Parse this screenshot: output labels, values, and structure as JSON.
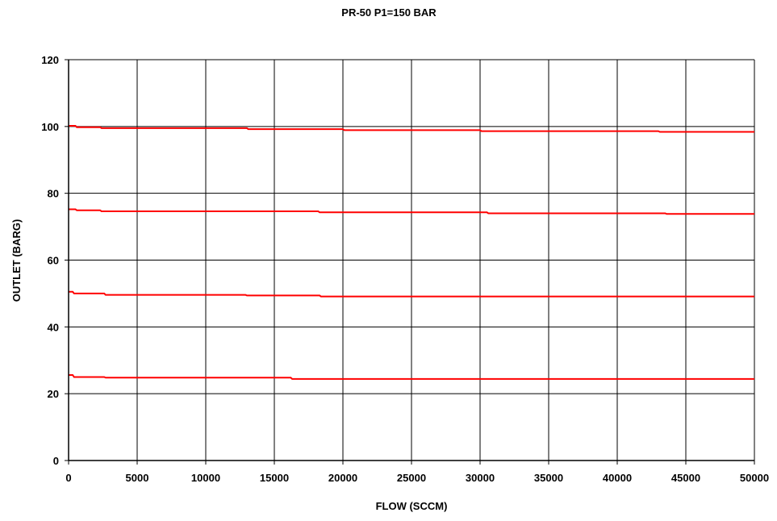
{
  "chart_data": {
    "type": "line",
    "title": "PR-50 P1=150 BAR",
    "xlabel": "FLOW (SCCM)",
    "ylabel": "OUTLET (BARG)",
    "xlim": [
      0,
      50000
    ],
    "ylim": [
      0,
      120
    ],
    "x_ticks": [
      "0",
      "5000",
      "10000",
      "15000",
      "20000",
      "25000",
      "30000",
      "35000",
      "40000",
      "45000",
      "50000"
    ],
    "y_ticks": [
      "0",
      "20",
      "40",
      "60",
      "80",
      "100",
      "120"
    ],
    "grid": true,
    "legend": "none",
    "colors": {
      "series": "#ff0000",
      "grid": "#000000",
      "background": "#ffffff"
    },
    "series": [
      {
        "x": [
          0,
          500,
          600,
          2300,
          2400,
          13000,
          13100,
          20000,
          20100,
          30000,
          30100,
          43000,
          43100,
          50000
        ],
        "y": [
          100.2,
          100.2,
          99.8,
          99.8,
          99.5,
          99.5,
          99.2,
          99.2,
          98.9,
          98.9,
          98.6,
          98.6,
          98.4,
          98.4
        ]
      },
      {
        "x": [
          0,
          500,
          600,
          2300,
          2400,
          18200,
          18300,
          30500,
          30600,
          43500,
          43600,
          50000
        ],
        "y": [
          75.2,
          75.2,
          74.9,
          74.9,
          74.6,
          74.6,
          74.3,
          74.3,
          74.0,
          74.0,
          73.8,
          73.8
        ]
      },
      {
        "x": [
          0,
          300,
          400,
          2600,
          2700,
          12900,
          13000,
          18300,
          18400,
          50000
        ],
        "y": [
          50.5,
          50.5,
          50.0,
          50.0,
          49.6,
          49.6,
          49.4,
          49.4,
          49.1,
          49.1
        ]
      },
      {
        "x": [
          0,
          300,
          400,
          2600,
          2700,
          16200,
          16300,
          50000
        ],
        "y": [
          25.6,
          25.6,
          25.0,
          25.0,
          24.8,
          24.8,
          24.4,
          24.4
        ]
      }
    ]
  }
}
